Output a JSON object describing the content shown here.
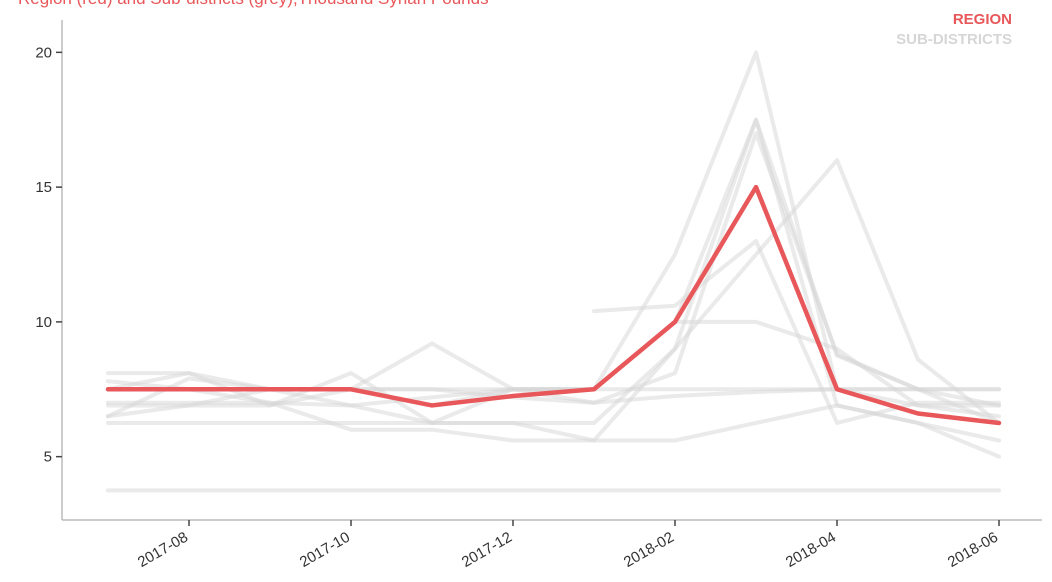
{
  "chart_data": {
    "type": "line",
    "title": "Region (red) and Sub-districts (grey),Thousand Syrian Pounds",
    "categories": [
      "2017-07",
      "2017-08",
      "2017-09",
      "2017-10",
      "2017-11",
      "2017-12",
      "2018-01",
      "2018-02",
      "2018-03",
      "2018-04",
      "2018-05",
      "2018-06"
    ],
    "xticks": [
      "2017-08",
      "2017-10",
      "2017-12",
      "2018-02",
      "2018-04",
      "2018-06"
    ],
    "ylim": [
      2.65,
      21.2
    ],
    "yticks": [
      5,
      10,
      15,
      20
    ],
    "grid": false,
    "legend": "top-right",
    "series": [
      {
        "name": "SUB-DISTRICTS",
        "color": "#d6d6d6",
        "values": [
          3.75,
          3.75,
          3.75,
          3.75,
          3.75,
          3.75,
          3.75,
          3.75,
          3.75,
          3.75,
          3.75,
          3.75
        ]
      },
      {
        "name": "SUB-DISTRICTS",
        "color": "#d6d6d6",
        "values": [
          7.5,
          7.5,
          7.5,
          7.5,
          7.5,
          7.5,
          7.5,
          7.5,
          7.5,
          7.5,
          7.5,
          7.5
        ]
      },
      {
        "name": "SUB-DISTRICTS",
        "color": "#d6d6d6",
        "values": [
          6.25,
          6.25,
          6.25,
          6.25,
          6.25,
          6.25,
          6.25,
          9,
          17.5,
          6.9,
          6.25,
          5.6
        ]
      },
      {
        "name": "SUB-DISTRICTS",
        "color": "#d6d6d6",
        "values": [
          7.5,
          8.1,
          6.9,
          8.1,
          6.25,
          7.5,
          7.5,
          10,
          17.5,
          8.75,
          7.5,
          6.9
        ]
      },
      {
        "name": "SUB-DISTRICTS",
        "color": "#d6d6d6",
        "values": [
          6.5,
          7.9,
          7.5,
          7.5,
          9.2,
          7.5,
          7.5,
          12.5,
          20,
          7.5,
          6.9,
          6.5
        ]
      },
      {
        "name": "SUB-DISTRICTS",
        "color": "#d6d6d6",
        "values": [
          8.1,
          8.1,
          7.5,
          6.9,
          6.25,
          6.25,
          5.6,
          5.6,
          6.25,
          6.9,
          6.25,
          5.0
        ]
      },
      {
        "name": "SUB-DISTRICTS",
        "color": "#d6d6d6",
        "values": [
          7.0,
          7.0,
          7.0,
          6.0,
          6.0,
          5.6,
          5.6,
          9,
          12.5,
          16,
          8.6,
          6.25
        ]
      },
      {
        "name": "SUB-DISTRICTS",
        "color": "#d6d6d6",
        "values": [
          6.9,
          6.9,
          7.5,
          7.5,
          7.5,
          7.2,
          7.0,
          7.25,
          7.4,
          7.5,
          7.5,
          7.5
        ]
      },
      {
        "name": "SUB-DISTRICTS",
        "color": "#d6d6d6",
        "values": [
          null,
          null,
          null,
          null,
          null,
          null,
          10.4,
          10.6,
          13,
          6.25,
          7.0,
          7.0
        ]
      },
      {
        "name": "SUB-DISTRICTS",
        "color": "#d6d6d6",
        "values": [
          6.5,
          6.9,
          6.9,
          7.5,
          6.9,
          7.5,
          7.5,
          10,
          10,
          9,
          6.9,
          6.9
        ]
      },
      {
        "name": "SUB-DISTRICTS",
        "color": "#d6d6d6",
        "values": [
          7.8,
          7.5,
          7.0,
          6.9,
          7.2,
          7.5,
          7.0,
          8.1,
          17,
          8.8,
          7.5,
          6.25
        ]
      },
      {
        "name": "REGION",
        "color": "#e8575a",
        "values": [
          7.5,
          7.5,
          7.5,
          7.5,
          6.9,
          7.25,
          7.5,
          10,
          15,
          7.5,
          6.6,
          6.25
        ]
      }
    ]
  }
}
